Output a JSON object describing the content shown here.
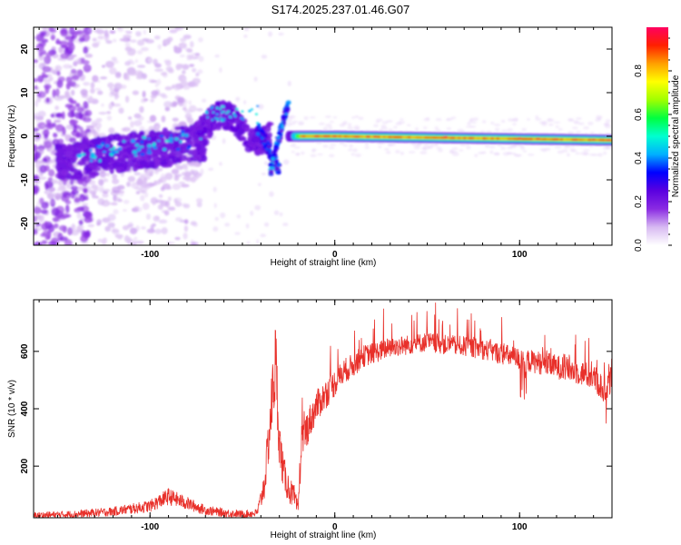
{
  "title": "S174.2025.237.01.46.G07",
  "colors": {
    "snr_line": "#e8302a",
    "axis": "#000000",
    "background": "#ffffff",
    "ridge_peak": "#e01030"
  },
  "chart_data": [
    {
      "type": "heatmap",
      "name": "spectrogram",
      "xlabel": "Height of straight line (km)",
      "ylabel": "Frequency (Hz)",
      "xlim": [
        -163,
        150
      ],
      "ylim": [
        -25,
        25
      ],
      "x_ticks": [
        -100,
        0,
        100
      ],
      "y_ticks": [
        -20,
        -10,
        0,
        10,
        20
      ],
      "colorbar": {
        "label": "Normalized spectral amplitude",
        "range": [
          0,
          1
        ],
        "ticks": [
          "0.0",
          "0.2",
          "0.4",
          "0.6",
          "0.8"
        ],
        "tick_values": [
          0,
          0.2,
          0.4,
          0.6,
          0.8
        ],
        "colormap": [
          "#ffffff",
          "#d7b9f2",
          "#8a2be2",
          "#5a00e0",
          "#0000ff",
          "#00b0ff",
          "#00ffd0",
          "#00ff40",
          "#a0ff00",
          "#ffff00",
          "#ffa000",
          "#ff2000",
          "#ff0060"
        ]
      },
      "main_signal": {
        "description_points_x": [
          -25,
          0,
          50,
          100,
          150
        ],
        "description_points_y": [
          0,
          0,
          0,
          -0.5,
          -0.8
        ]
      }
    },
    {
      "type": "line",
      "name": "snr",
      "xlabel": "Height of straight line (km)",
      "ylabel": "SNR (10 * v/v)",
      "xlim": [
        -163,
        150
      ],
      "ylim": [
        20,
        780
      ],
      "x_ticks": [
        -100,
        0,
        100
      ],
      "y_ticks": [
        200,
        400,
        600
      ],
      "envelope_x": [
        -163,
        -140,
        -120,
        -110,
        -100,
        -90,
        -80,
        -70,
        -60,
        -50,
        -42,
        -38,
        -36,
        -34,
        -32,
        -30,
        -28,
        -26,
        -24,
        -22,
        -20,
        -18,
        -16,
        -14,
        -12,
        -10,
        -5,
        0,
        5,
        10,
        15,
        20,
        25,
        30,
        40,
        50,
        60,
        70,
        80,
        90,
        100,
        110,
        120,
        130,
        140,
        145,
        150
      ],
      "envelope_y": [
        30,
        35,
        45,
        55,
        65,
        100,
        75,
        50,
        40,
        35,
        40,
        150,
        300,
        450,
        600,
        300,
        200,
        150,
        120,
        100,
        50,
        300,
        330,
        360,
        390,
        420,
        460,
        500,
        540,
        560,
        590,
        600,
        610,
        620,
        630,
        640,
        630,
        625,
        615,
        600,
        580,
        570,
        555,
        540,
        520,
        480,
        510
      ]
    }
  ]
}
